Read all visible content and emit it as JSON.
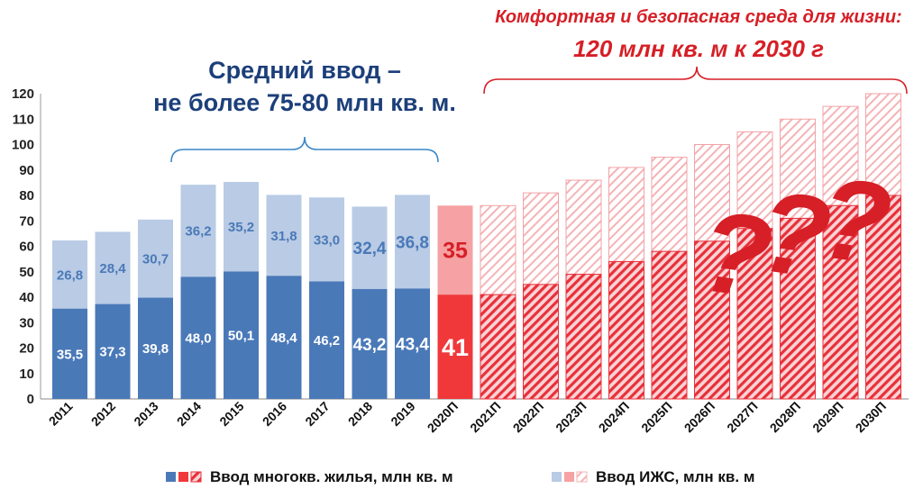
{
  "chart_data": {
    "type": "bar",
    "stacked": true,
    "categories": [
      "2011",
      "2012",
      "2013",
      "2014",
      "2015",
      "2016",
      "2017",
      "2018",
      "2019",
      "2020П",
      "2021П",
      "2022П",
      "2023П",
      "2024П",
      "2025П",
      "2026П",
      "2027П",
      "2028П",
      "2029П",
      "2030П"
    ],
    "series": [
      {
        "name": "Ввод многокв. жилья, млн кв. м",
        "values": [
          35.5,
          37.3,
          39.8,
          48.0,
          50.1,
          48.4,
          46.2,
          43.2,
          43.4,
          41,
          41,
          45,
          49,
          54,
          58,
          62,
          67,
          71,
          76,
          80
        ],
        "labels": [
          "35,5",
          "37,3",
          "39,8",
          "48,0",
          "50,1",
          "48,4",
          "46,2",
          "43,2",
          "43,4",
          "41",
          "",
          "",
          "",
          "",
          "",
          "",
          "",
          "",
          "",
          ""
        ]
      },
      {
        "name": "Ввод ИЖС, млн кв. м",
        "values": [
          26.8,
          28.4,
          30.7,
          36.2,
          35.2,
          31.8,
          33.0,
          32.4,
          36.8,
          35,
          35,
          36,
          37,
          37,
          37,
          38,
          38,
          39,
          39,
          40
        ],
        "labels": [
          "26,8",
          "28,4",
          "30,7",
          "36,2",
          "35,2",
          "31,8",
          "33,0",
          "32,4",
          "36,8",
          "35",
          "",
          "",
          "",
          "",
          "",
          "",
          "",
          "",
          "",
          ""
        ]
      }
    ],
    "ylim": [
      0,
      120
    ],
    "yticks": [
      "0",
      "10",
      "20",
      "30",
      "40",
      "50",
      "60",
      "70",
      "80",
      "90",
      "100",
      "110",
      "120"
    ],
    "grid": false,
    "legend_position": "bottom",
    "colors": {
      "actual_bottom": "#4a79b8",
      "actual_top": "#b9cbe5",
      "label_bottom": "#ffffff",
      "label_top": "#4a79b8",
      "current_bottom": "#f0383a",
      "current_top": "#f6a1a3",
      "forecast": "#e8303a",
      "annotation_blue": "#1c3f7a",
      "annotation_red": "#d61f26"
    }
  },
  "annotations": {
    "left_line1": "Средний ввод –",
    "left_line2": "не более 75-80 млн кв. м.",
    "right_line1": "Комфортная и безопасная среда для жизни:",
    "right_line2": "120 млн кв. м к 2030 г",
    "question_marks": [
      "?",
      "?",
      "?"
    ]
  },
  "legend": {
    "item1": "Ввод многокв. жилья, млн кв. м",
    "item2": "Ввод ИЖС, млн кв. м"
  }
}
